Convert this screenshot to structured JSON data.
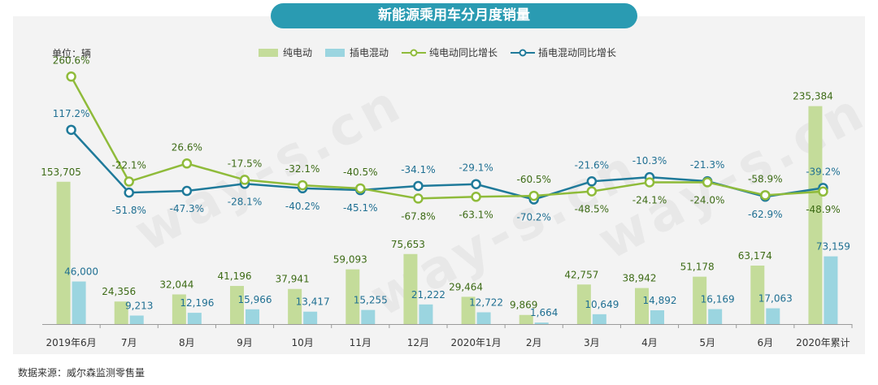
{
  "header": {
    "title": "新能源乘用车分月度销量"
  },
  "unit_label": "单位：辆",
  "source_label": "数据来源：威尔森监测零售量",
  "watermark": "way-s.cn",
  "colors": {
    "title_bg": "#2a9bb2",
    "bev_bar": "#c4dc9a",
    "phev_bar": "#9bd5e0",
    "bev_line": "#8fbb3a",
    "phev_line": "#1f7a9a",
    "bev_label": "#3d6b16",
    "phev_label": "#1f6f92"
  },
  "chart_data": {
    "type": "bar",
    "categories": [
      "2019年6月",
      "7月",
      "8月",
      "9月",
      "10月",
      "11月",
      "12月",
      "2020年1月",
      "2月",
      "3月",
      "4月",
      "5月",
      "6月",
      "2020年累计"
    ],
    "series": [
      {
        "name": "纯电动",
        "kind": "bar",
        "values": [
          153705,
          24356,
          32044,
          41196,
          37941,
          59093,
          75653,
          29464,
          9869,
          42757,
          38942,
          51178,
          63174,
          235384
        ],
        "labels": [
          "153,705",
          "24,356",
          "32,044",
          "41,196",
          "37,941",
          "59,093",
          "75,653",
          "29,464",
          "9,869",
          "42,757",
          "38,942",
          "51,178",
          "63,174",
          "235,384"
        ]
      },
      {
        "name": "插电混动",
        "kind": "bar",
        "values": [
          46000,
          9213,
          12196,
          15966,
          13417,
          15255,
          21222,
          12722,
          1664,
          10649,
          14892,
          16169,
          17063,
          73159
        ],
        "labels": [
          "46,000",
          "9,213",
          "12,196",
          "15,966",
          "13,417",
          "15,255",
          "21,222",
          "12,722",
          "1,664",
          "10,649",
          "14,892",
          "16,169",
          "17,063",
          "73,159"
        ]
      },
      {
        "name": "纯电动同比增长",
        "kind": "line",
        "values": [
          260.6,
          -22.1,
          26.6,
          -17.5,
          -32.1,
          -40.5,
          -67.8,
          -63.1,
          -60.5,
          -48.5,
          -24.1,
          -24.0,
          -58.9,
          -48.9
        ],
        "labels": [
          "260.6%",
          "-22.1%",
          "26.6%",
          "-17.5%",
          "-32.1%",
          "-40.5%",
          "-67.8%",
          "-63.1%",
          "-60.5%",
          "-48.5%",
          "-24.1%",
          "-24.0%",
          "-58.9%",
          "-48.9%"
        ]
      },
      {
        "name": "插电混动同比增长",
        "kind": "line",
        "values": [
          117.2,
          -51.8,
          -47.3,
          -28.1,
          -40.2,
          -45.1,
          -34.1,
          -29.1,
          -70.2,
          -21.6,
          -10.3,
          -21.3,
          -62.9,
          -39.2
        ],
        "labels": [
          "117.2%",
          "-51.8%",
          "-47.3%",
          "-28.1%",
          "-40.2%",
          "-45.1%",
          "-34.1%",
          "-29.1%",
          "-70.2%",
          "-21.6%",
          "-10.3%",
          "-21.3%",
          "-62.9%",
          "-39.2%"
        ]
      }
    ],
    "ylim_bars": [
      0,
      250000
    ],
    "ylim_lines": [
      -80,
      270
    ],
    "grid": false,
    "legend_position": "top-center"
  }
}
